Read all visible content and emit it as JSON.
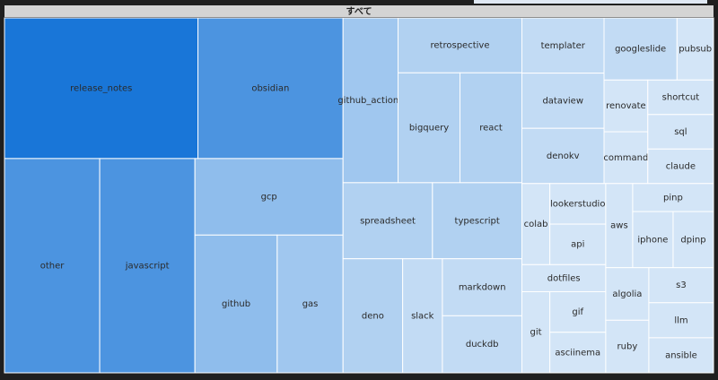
{
  "chart_data": {
    "type": "treemap",
    "root_label": "すべて",
    "categories": [
      "release_notes",
      "obsidian",
      "other",
      "javascript",
      "gcp",
      "github",
      "gas",
      "github_actions",
      "retrospective",
      "bigquery",
      "react",
      "spreadsheet",
      "typescript",
      "deno",
      "slack",
      "markdown",
      "duckdb",
      "templater",
      "dataview",
      "denokv",
      "googleslide",
      "pubsub",
      "renovate",
      "command",
      "shortcut",
      "sql",
      "claude",
      "colab",
      "lookerstudio",
      "api",
      "aws",
      "pinp",
      "iphone",
      "dpinp",
      "dotfiles",
      "git",
      "gif",
      "asciinema",
      "algolia",
      "ruby",
      "s3",
      "llm",
      "ansible"
    ],
    "values": [
      12,
      9,
      9,
      9,
      5,
      5,
      4,
      4,
      3,
      3,
      3,
      3,
      3,
      3,
      2,
      2,
      2,
      2,
      2,
      2,
      2,
      1,
      1,
      1,
      1,
      1,
      1,
      1,
      1,
      1,
      1,
      1,
      1,
      1,
      1,
      1,
      1,
      1,
      1,
      1,
      1,
      1,
      1
    ],
    "color_scale": [
      "#d3e5f7",
      "#1976d8"
    ]
  }
}
